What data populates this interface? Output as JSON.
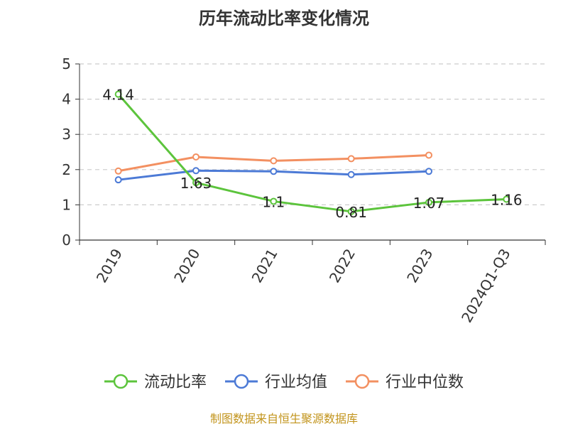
{
  "chart_data": {
    "type": "line",
    "title": "历年流动比率变化情况",
    "categories": [
      "2019",
      "2020",
      "2021",
      "2022",
      "2023",
      "2024Q1-Q3"
    ],
    "ylim": [
      0,
      5
    ],
    "yticks": [
      0,
      1,
      2,
      3,
      4,
      5
    ],
    "grid": true,
    "legend_position": "bottom",
    "series": [
      {
        "name": "流动比率",
        "color": "#5cc43c",
        "values": [
          4.14,
          1.63,
          1.1,
          0.81,
          1.07,
          1.16
        ],
        "labels": [
          "4.14",
          "1.63",
          "1.1",
          "0.81",
          "1.07",
          "1.16"
        ]
      },
      {
        "name": "行业均值",
        "color": "#4c7ad6",
        "values": [
          1.71,
          1.97,
          1.95,
          1.86,
          1.95,
          null
        ]
      },
      {
        "name": "行业中位数",
        "color": "#f39061",
        "values": [
          1.96,
          2.36,
          2.25,
          2.31,
          2.41,
          null
        ]
      }
    ],
    "source": "制图数据来自恒生聚源数据库"
  }
}
